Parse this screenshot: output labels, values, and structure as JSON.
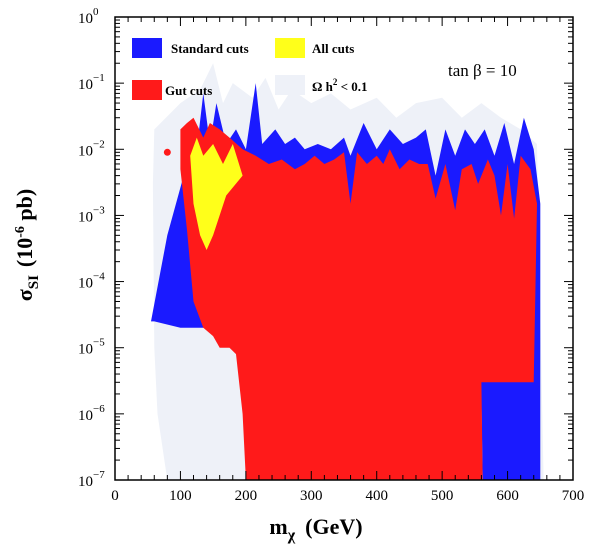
{
  "chart_data": {
    "type": "area",
    "x_scale": "linear",
    "y_scale": "log",
    "xlim": [
      0,
      700
    ],
    "ylim": [
      1e-07,
      1
    ],
    "x_ticks": [
      0,
      100,
      200,
      300,
      400,
      500,
      600,
      700
    ],
    "y_ticks": [
      {
        "value": 1,
        "base": "10",
        "exp": "0"
      },
      {
        "value": 0.1,
        "base": "10",
        "exp": "−1"
      },
      {
        "value": 0.01,
        "base": "10",
        "exp": "−2"
      },
      {
        "value": 0.001,
        "base": "10",
        "exp": "−3"
      },
      {
        "value": 0.0001,
        "base": "10",
        "exp": "−4"
      },
      {
        "value": 1e-05,
        "base": "10",
        "exp": "−5"
      },
      {
        "value": 1e-06,
        "base": "10",
        "exp": "−6"
      },
      {
        "value": 1e-07,
        "base": "10",
        "exp": "−7"
      }
    ],
    "xlabel": {
      "main": "m",
      "sub": "χ",
      "unit": "(GeV)"
    },
    "ylabel": {
      "main": "σ",
      "sub": "SI",
      "unit_pre": "(10",
      "unit_exp": "-6",
      "unit_post": " pb)"
    },
    "annotation": "tan β = 10",
    "legend": [
      {
        "label": "Standard cuts",
        "color": "#1a1aff"
      },
      {
        "label": "All cuts",
        "color": "#ffff1a"
      },
      {
        "label": "Gut cuts",
        "color": "#ff1a1a"
      },
      {
        "label_main": "Ω h",
        "label_exp": "2",
        "label_post": " < 0.1",
        "color": "#eef1f8"
      }
    ],
    "series": [
      {
        "name": "Ω h2 < 0.1",
        "color": "#eef1f8",
        "polygon": [
          [
            60,
            0.02
          ],
          [
            100,
            0.05
          ],
          [
            130,
            0.08
          ],
          [
            150,
            0.2
          ],
          [
            165,
            0.05
          ],
          [
            180,
            0.1
          ],
          [
            210,
            0.06
          ],
          [
            230,
            0.12
          ],
          [
            250,
            0.04
          ],
          [
            270,
            0.08
          ],
          [
            300,
            0.05
          ],
          [
            330,
            0.07
          ],
          [
            360,
            0.04
          ],
          [
            400,
            0.06
          ],
          [
            430,
            0.03
          ],
          [
            460,
            0.05
          ],
          [
            500,
            0.06
          ],
          [
            530,
            0.03
          ],
          [
            560,
            0.05
          ],
          [
            590,
            0.03
          ],
          [
            620,
            0.02
          ],
          [
            645,
            0.012
          ],
          [
            655,
            1e-07
          ],
          [
            225,
            1e-07
          ],
          [
            200,
            1e-07
          ],
          [
            150,
            1e-07
          ],
          [
            80,
            1e-07
          ],
          [
            65,
            1e-06
          ],
          [
            60,
            1e-05
          ],
          [
            58,
            0.003
          ]
        ]
      },
      {
        "name": "Standard cuts",
        "color": "#1a1aff",
        "polygon": [
          [
            55,
            2.5e-05
          ],
          [
            80,
            0.0005
          ],
          [
            105,
            0.004
          ],
          [
            115,
            0.02
          ],
          [
            125,
            0.01
          ],
          [
            135,
            0.07
          ],
          [
            145,
            0.012
          ],
          [
            155,
            0.05
          ],
          [
            170,
            0.012
          ],
          [
            185,
            0.02
          ],
          [
            200,
            0.01
          ],
          [
            215,
            0.1
          ],
          [
            225,
            0.012
          ],
          [
            245,
            0.02
          ],
          [
            260,
            0.012
          ],
          [
            275,
            0.015
          ],
          [
            290,
            0.01
          ],
          [
            310,
            0.012
          ],
          [
            330,
            0.01
          ],
          [
            350,
            0.015
          ],
          [
            360,
            0.008
          ],
          [
            380,
            0.025
          ],
          [
            400,
            0.01
          ],
          [
            420,
            0.02
          ],
          [
            440,
            0.012
          ],
          [
            460,
            0.015
          ],
          [
            475,
            0.02
          ],
          [
            490,
            0.004
          ],
          [
            505,
            0.02
          ],
          [
            520,
            0.008
          ],
          [
            535,
            0.02
          ],
          [
            550,
            0.012
          ],
          [
            565,
            0.02
          ],
          [
            580,
            0.008
          ],
          [
            595,
            0.025
          ],
          [
            610,
            0.006
          ],
          [
            625,
            0.03
          ],
          [
            640,
            0.01
          ],
          [
            650,
            0.0015
          ],
          [
            650,
            1e-07
          ],
          [
            562,
            1e-07
          ],
          [
            560,
            1.5e-06
          ],
          [
            545,
            2.5e-06
          ],
          [
            500,
            2.5e-06
          ],
          [
            420,
            2.5e-06
          ],
          [
            320,
            2.5e-06
          ],
          [
            230,
            3e-06
          ],
          [
            185,
            2e-05
          ],
          [
            150,
            2e-05
          ],
          [
            100,
            2e-05
          ],
          [
            60,
            2.5e-05
          ]
        ]
      },
      {
        "name": "Gut cuts",
        "color": "#ff1a1a",
        "polygon": [
          [
            100,
            0.02
          ],
          [
            110,
            0.025
          ],
          [
            120,
            0.03
          ],
          [
            135,
            0.015
          ],
          [
            145,
            0.025
          ],
          [
            160,
            0.02
          ],
          [
            175,
            0.015
          ],
          [
            195,
            0.01
          ],
          [
            215,
            0.008
          ],
          [
            235,
            0.006
          ],
          [
            255,
            0.007
          ],
          [
            275,
            0.005
          ],
          [
            290,
            0.006
          ],
          [
            305,
            0.008
          ],
          [
            320,
            0.006
          ],
          [
            335,
            0.007
          ],
          [
            350,
            0.009
          ],
          [
            360,
            0.0015
          ],
          [
            370,
            0.009
          ],
          [
            385,
            0.006
          ],
          [
            400,
            0.008
          ],
          [
            410,
            0.006
          ],
          [
            420,
            0.01
          ],
          [
            435,
            0.005
          ],
          [
            450,
            0.007
          ],
          [
            465,
            0.006
          ],
          [
            478,
            0.006
          ],
          [
            490,
            0.0018
          ],
          [
            505,
            0.006
          ],
          [
            520,
            0.0012
          ],
          [
            530,
            0.005
          ],
          [
            545,
            0.006
          ],
          [
            555,
            0.003
          ],
          [
            570,
            0.007
          ],
          [
            580,
            0.004
          ],
          [
            590,
            0.001
          ],
          [
            600,
            0.006
          ],
          [
            610,
            0.0009
          ],
          [
            620,
            0.008
          ],
          [
            635,
            0.005
          ],
          [
            645,
            0.0015
          ],
          [
            640,
            3e-06
          ],
          [
            600,
            3e-06
          ],
          [
            560,
            3e-06
          ],
          [
            562,
            1e-07
          ],
          [
            200,
            1e-07
          ],
          [
            195,
            1e-06
          ],
          [
            185,
            8e-06
          ],
          [
            175,
            1e-05
          ],
          [
            160,
            1e-05
          ],
          [
            150,
            1.5e-05
          ],
          [
            135,
            2e-05
          ],
          [
            120,
            5e-05
          ],
          [
            110,
            0.0006
          ],
          [
            100,
            0.005
          ]
        ]
      },
      {
        "name": "All cuts",
        "color": "#ffff1a",
        "polygon": [
          [
            115,
            0.008
          ],
          [
            125,
            0.015
          ],
          [
            135,
            0.008
          ],
          [
            150,
            0.012
          ],
          [
            165,
            0.006
          ],
          [
            180,
            0.012
          ],
          [
            195,
            0.004
          ],
          [
            170,
            0.002
          ],
          [
            150,
            0.0005
          ],
          [
            140,
            0.0003
          ],
          [
            130,
            0.0005
          ],
          [
            120,
            0.0015
          ]
        ]
      }
    ],
    "points": [
      {
        "name": "isolated-point",
        "x": 80,
        "y": 0.009,
        "color": "#ff1a1a"
      }
    ]
  }
}
